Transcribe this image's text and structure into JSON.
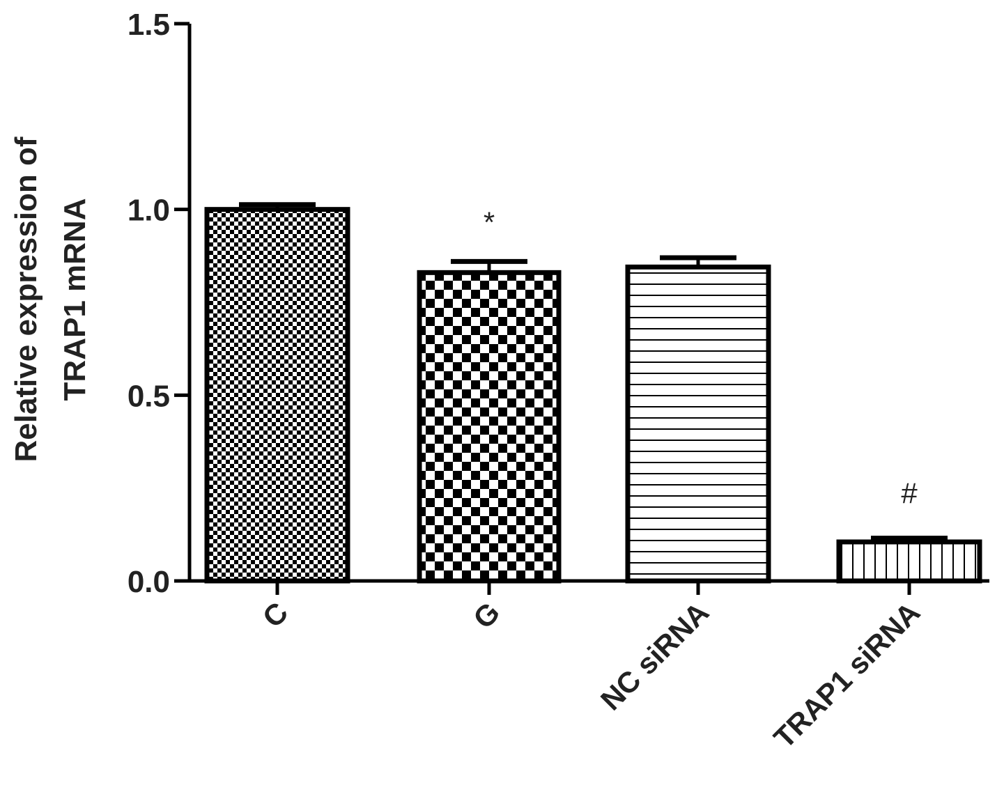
{
  "chart_data": {
    "type": "bar",
    "title": "",
    "xlabel": "",
    "ylabel_lines": [
      "Relative expression of",
      "TRAP1 mRNA"
    ],
    "categories": [
      "C",
      "G",
      "NC siRNA",
      "TRAP1 siRNA"
    ],
    "values": [
      1.0,
      0.83,
      0.845,
      0.105
    ],
    "errors": [
      0.013,
      0.03,
      0.025,
      0.01
    ],
    "patterns": [
      "fine-check",
      "coarse-check",
      "horizontal-lines",
      "vertical-lines"
    ],
    "annotations": [
      "",
      "*",
      "",
      "#"
    ],
    "ylim": [
      0,
      1.5
    ],
    "yticks": [
      0.0,
      0.5,
      1.0,
      1.5
    ],
    "ytick_labels": [
      "0.0",
      "0.5",
      "1.0",
      "1.5"
    ],
    "grid": false,
    "legend": "none",
    "colors": {
      "stroke": "#000000",
      "text": "#222222",
      "background": "#ffffff"
    }
  }
}
